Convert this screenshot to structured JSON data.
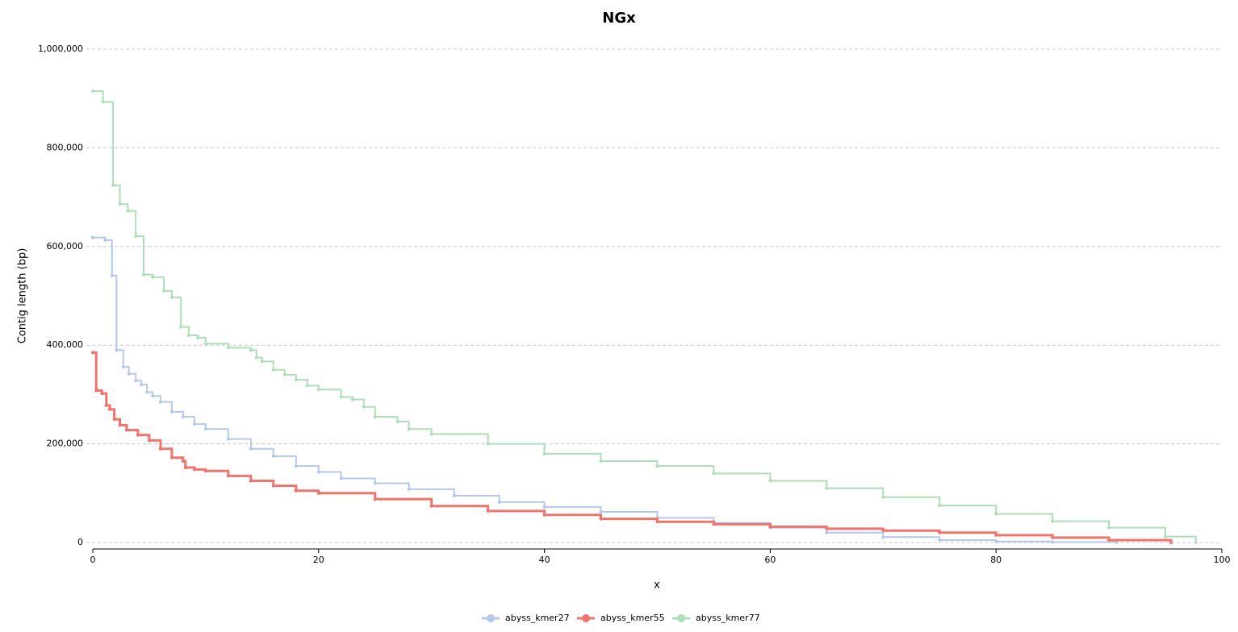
{
  "chart_data": {
    "type": "step",
    "title": "NGx",
    "x_label": "x",
    "y_label": "Contig length (bp)",
    "xlim": [
      0,
      100
    ],
    "ylim": [
      0,
      1000000
    ],
    "xticks": [
      0,
      20,
      40,
      60,
      80,
      100
    ],
    "yticks": [
      0,
      {
        "value": 200000,
        "label": "200,000"
      },
      {
        "value": 400000,
        "label": "400,000"
      },
      {
        "value": 600000,
        "label": "600,000"
      },
      {
        "value": 800000,
        "label": "800,000"
      },
      {
        "value": 1000000,
        "label": "1,000,000"
      }
    ],
    "grid": true,
    "legend": "bottom",
    "series": [
      {
        "name": "abyss_kmer27",
        "color": "#b4c8ec",
        "x": [
          0,
          1.1,
          1.7,
          2.1,
          2.7,
          3.2,
          3.8,
          4.3,
          4.8,
          5.3,
          6.0,
          7.0,
          8.0,
          9.0,
          10,
          12,
          14,
          16,
          18,
          20,
          22,
          25,
          28,
          32,
          36,
          40,
          45,
          50,
          55,
          60,
          65,
          70,
          75,
          80,
          85,
          90.7
        ],
        "values": [
          618000,
          613000,
          541000,
          390000,
          356000,
          342000,
          328000,
          320000,
          305000,
          297000,
          285000,
          265000,
          255000,
          240000,
          230000,
          210000,
          190000,
          175000,
          155000,
          143000,
          130000,
          120000,
          108000,
          95000,
          82000,
          72000,
          62000,
          50000,
          40000,
          30000,
          20000,
          11000,
          5000,
          2000,
          800,
          0
        ]
      },
      {
        "name": "abyss_kmer55",
        "color": "#f0746e",
        "x": [
          0,
          0.3,
          0.8,
          1.2,
          1.5,
          1.9,
          2.4,
          3,
          4,
          5,
          6,
          7,
          8,
          8.2,
          9,
          10,
          12,
          14,
          16,
          18,
          20,
          25,
          30,
          35,
          40,
          45,
          50,
          55,
          60,
          65,
          70,
          75,
          80,
          85,
          90,
          95.5
        ],
        "values": [
          385000,
          308000,
          302000,
          278000,
          270000,
          250000,
          238000,
          228000,
          218000,
          207000,
          190000,
          172000,
          165000,
          152000,
          148000,
          145000,
          135000,
          125000,
          115000,
          105000,
          100000,
          88000,
          74000,
          64000,
          56000,
          48000,
          42000,
          37000,
          32000,
          28000,
          24000,
          20000,
          15000,
          10000,
          5000,
          0
        ]
      },
      {
        "name": "abyss_kmer77",
        "color": "#addfb7",
        "x": [
          0,
          0.9,
          1.8,
          2.4,
          3.1,
          3.8,
          4.5,
          5.3,
          6.3,
          7.0,
          7.8,
          8.5,
          9.3,
          10.0,
          12,
          14,
          14.5,
          15,
          16,
          17,
          18,
          19,
          20,
          22,
          23,
          24,
          25,
          27,
          28,
          30,
          35,
          40,
          45,
          50,
          55,
          60,
          65,
          70,
          75,
          80,
          85,
          90,
          95,
          97.7
        ],
        "values": [
          915000,
          893000,
          724000,
          686000,
          672000,
          621000,
          543000,
          538000,
          510000,
          497000,
          437000,
          420000,
          415000,
          403000,
          395000,
          390000,
          375000,
          367000,
          350000,
          340000,
          330000,
          318000,
          310000,
          295000,
          290000,
          275000,
          255000,
          245000,
          230000,
          220000,
          200000,
          180000,
          165000,
          155000,
          140000,
          125000,
          110000,
          92000,
          75000,
          58000,
          43000,
          30000,
          12000,
          0
        ]
      }
    ]
  }
}
